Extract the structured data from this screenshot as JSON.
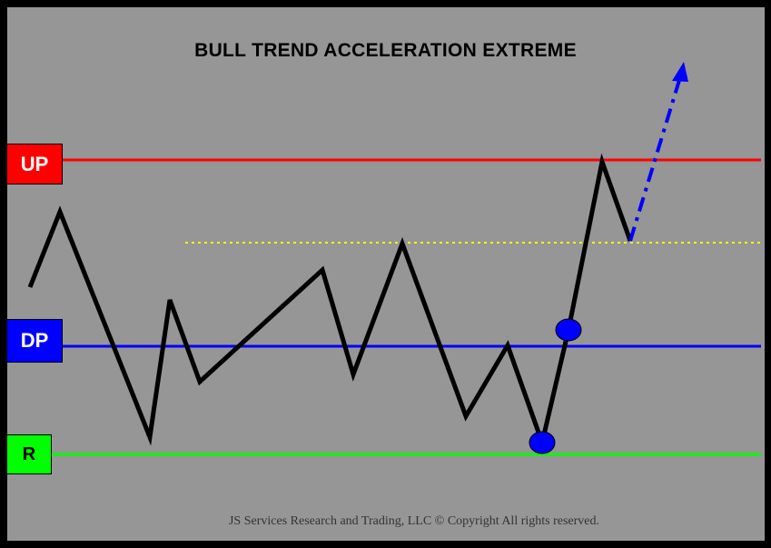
{
  "title": "BULL TREND ACCELERATION EXTREME",
  "copyright": "JS Services Research  and Trading,  LLC © Copyright  All rights reserved.",
  "levels": {
    "up": {
      "label": "UP",
      "color": "#ff0000",
      "text_color": "#ffffff"
    },
    "dp": {
      "label": "DP",
      "color": "#0000ff",
      "text_color": "#ffffff"
    },
    "r": {
      "label": "R",
      "color": "#00ff00",
      "text_color": "#000000"
    }
  },
  "colors": {
    "background": "#969696",
    "frame": "#000000",
    "price_path": "#000000",
    "breakout_marker": "#0000ff",
    "projection_arrow": "#0000ff",
    "reference_line": "#ffff00"
  },
  "elements": {
    "price_path": "black zig-zag price line",
    "reference_line": "yellow dotted line",
    "markers": [
      "blue circle on R line",
      "blue circle on DP line"
    ],
    "projection": "blue dash-dot arrow pointing up"
  }
}
